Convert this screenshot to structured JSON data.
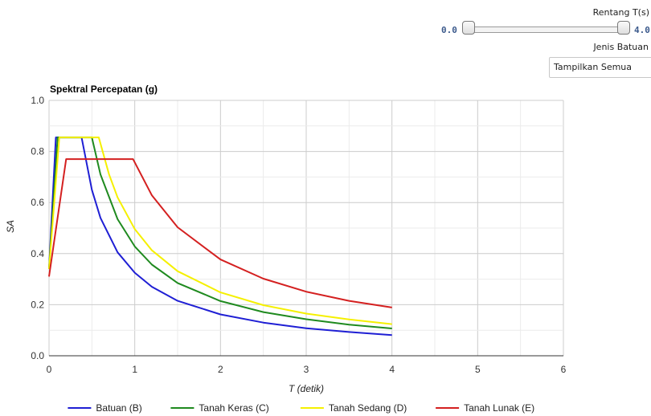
{
  "controls": {
    "range_label": "Rentang T(s)",
    "range_min": "0.0",
    "range_max": "4.0",
    "range_value": [
      0.0,
      4.0
    ],
    "rock_type_label": "Jenis Batuan",
    "rock_type_selected": "Tampilkan Semua"
  },
  "chart_data": {
    "type": "line",
    "title": "Spektral Percepatan (g)",
    "xlabel": "T (detik)",
    "ylabel": "SA",
    "xlim": [
      0,
      6
    ],
    "ylim": [
      0,
      1.0
    ],
    "xticks": [
      0,
      1,
      2,
      3,
      4,
      5,
      6
    ],
    "xtick_labels": [
      "0",
      "1",
      "2",
      "3",
      "4",
      "5",
      "6"
    ],
    "yticks": [
      0,
      0.2,
      0.4,
      0.6,
      0.8,
      1.0
    ],
    "ytick_labels": [
      "0.0",
      "0.2",
      "0.4",
      "0.6",
      "0.8",
      "1.0"
    ],
    "grid": true,
    "legend_position": "bottom",
    "series": [
      {
        "name": "Batuan (B)",
        "color": "#1f1fd4",
        "x": [
          0,
          0.08,
          0.38,
          0.5,
          0.6,
          0.8,
          1.0,
          1.2,
          1.5,
          2.0,
          2.5,
          3.0,
          3.5,
          4.0
        ],
        "y": [
          0.34,
          0.855,
          0.855,
          0.65,
          0.54,
          0.405,
          0.325,
          0.27,
          0.215,
          0.162,
          0.13,
          0.108,
          0.093,
          0.081
        ]
      },
      {
        "name": "Tanah Keras (C)",
        "color": "#1f8a1f",
        "x": [
          0,
          0.1,
          0.5,
          0.6,
          0.8,
          1.0,
          1.2,
          1.5,
          2.0,
          2.5,
          3.0,
          3.5,
          4.0
        ],
        "y": [
          0.34,
          0.855,
          0.855,
          0.71,
          0.535,
          0.428,
          0.357,
          0.285,
          0.214,
          0.171,
          0.143,
          0.122,
          0.107
        ]
      },
      {
        "name": "Tanah Sedang (D)",
        "color": "#f5f000",
        "x": [
          0,
          0.12,
          0.58,
          0.7,
          0.8,
          1.0,
          1.2,
          1.5,
          2.0,
          2.5,
          3.0,
          3.5,
          4.0
        ],
        "y": [
          0.34,
          0.855,
          0.855,
          0.71,
          0.62,
          0.496,
          0.413,
          0.331,
          0.248,
          0.198,
          0.165,
          0.142,
          0.124
        ]
      },
      {
        "name": "Tanah Lunak (E)",
        "color": "#d42020",
        "x": [
          0,
          0.2,
          0.98,
          1.2,
          1.5,
          2.0,
          2.5,
          3.0,
          3.5,
          4.0
        ],
        "y": [
          0.31,
          0.77,
          0.77,
          0.628,
          0.503,
          0.377,
          0.302,
          0.251,
          0.215,
          0.189
        ]
      }
    ]
  }
}
